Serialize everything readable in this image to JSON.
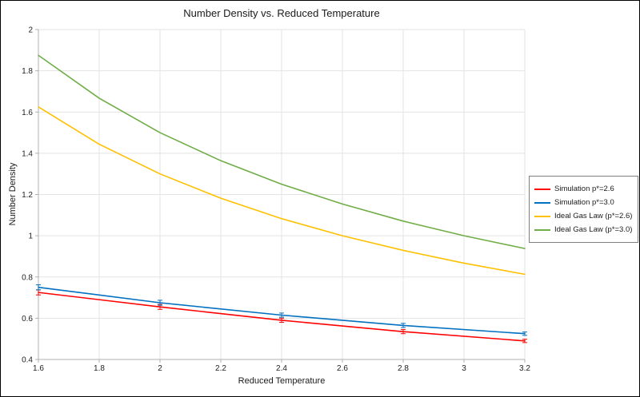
{
  "title": "Number Density vs. Reduced Temperature",
  "chart_data": {
    "type": "line",
    "title": "Number Density vs. Reduced Temperature",
    "xlabel": "Reduced Temperature",
    "ylabel": "Number Density",
    "xlim": [
      1.6,
      3.2
    ],
    "ylim": [
      0.4,
      2.0
    ],
    "x_tick_step": 0.2,
    "y_tick_step": 0.2,
    "grid": true,
    "legend_position": "right-outside",
    "colors": {
      "grid": "#e3e3e3",
      "axis": "#b0b0b0",
      "tick_text": "#222222"
    },
    "series": [
      {
        "name": "Simulation p*=2.6",
        "color": "#ff0000",
        "x": [
          1.6,
          2.0,
          2.4,
          2.8,
          3.2
        ],
        "y": [
          0.725,
          0.655,
          0.59,
          0.535,
          0.49
        ],
        "yerr": [
          0.012,
          0.012,
          0.01,
          0.01,
          0.008
        ]
      },
      {
        "name": "Simulation p*=3.0",
        "color": "#0070c0",
        "x": [
          1.6,
          2.0,
          2.4,
          2.8,
          3.2
        ],
        "y": [
          0.75,
          0.675,
          0.615,
          0.565,
          0.525
        ],
        "yerr": [
          0.012,
          0.012,
          0.01,
          0.01,
          0.008
        ]
      },
      {
        "name": "Ideal Gas Law (p*=2.6)",
        "color": "#ffc000",
        "x": [
          1.6,
          1.8,
          2.0,
          2.2,
          2.4,
          2.6,
          2.8,
          3.0,
          3.2
        ],
        "y": [
          1.625,
          1.444,
          1.3,
          1.182,
          1.083,
          1.0,
          0.929,
          0.867,
          0.813
        ]
      },
      {
        "name": "Ideal Gas Law (p*=3.0)",
        "color": "#70ad47",
        "x": [
          1.6,
          1.8,
          2.0,
          2.2,
          2.4,
          2.6,
          2.8,
          3.0,
          3.2
        ],
        "y": [
          1.875,
          1.667,
          1.5,
          1.364,
          1.25,
          1.154,
          1.071,
          1.0,
          0.938
        ]
      }
    ]
  }
}
